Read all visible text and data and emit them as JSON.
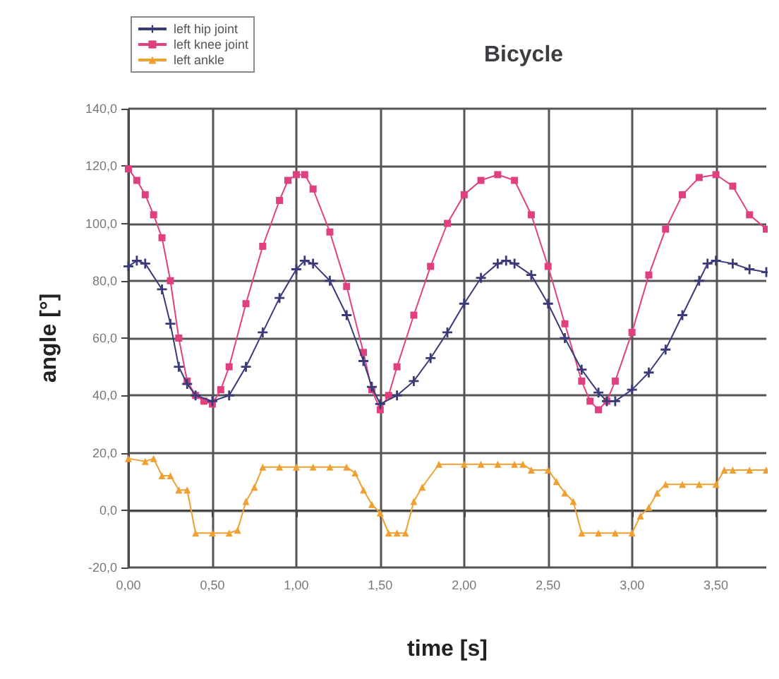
{
  "chart_data": {
    "type": "line",
    "title": "Bicycle",
    "xlabel": "time [s]",
    "ylabel": "angle [°]",
    "xlim": [
      0,
      3.8
    ],
    "xticks": [
      {
        "value": 0,
        "label": "0,00"
      },
      {
        "value": 0.5,
        "label": "0,50"
      },
      {
        "value": 1,
        "label": "1,00"
      },
      {
        "value": 1.5,
        "label": "1,50"
      },
      {
        "value": 2,
        "label": "2,00"
      },
      {
        "value": 2.5,
        "label": "2,50"
      },
      {
        "value": 3,
        "label": "3,00"
      },
      {
        "value": 3.5,
        "label": "3,50"
      }
    ],
    "ylim": [
      -20,
      140
    ],
    "yticks": [
      {
        "value": -20,
        "label": "-20,0"
      },
      {
        "value": 0,
        "label": "0,0"
      },
      {
        "value": 20,
        "label": "20,0"
      },
      {
        "value": 40,
        "label": "40,0"
      },
      {
        "value": 60,
        "label": "60,0"
      },
      {
        "value": 80,
        "label": "80,0"
      },
      {
        "value": 100,
        "label": "100,0"
      },
      {
        "value": 120,
        "label": "120,0"
      },
      {
        "value": 140,
        "label": "140,0"
      }
    ],
    "grid": true,
    "legend": "top left",
    "line_style": "solid",
    "series": [
      {
        "name": "left hip joint",
        "color": "#3a3a78",
        "marker": "cross",
        "x": [
          0,
          0.05,
          0.1,
          0.2,
          0.25,
          0.3,
          0.35,
          0.4,
          0.5,
          0.6,
          0.7,
          0.8,
          0.9,
          1.0,
          1.05,
          1.1,
          1.2,
          1.3,
          1.4,
          1.45,
          1.5,
          1.6,
          1.7,
          1.8,
          1.9,
          2.0,
          2.1,
          2.2,
          2.25,
          2.3,
          2.4,
          2.5,
          2.6,
          2.7,
          2.8,
          2.85,
          2.9,
          3.0,
          3.1,
          3.2,
          3.3,
          3.4,
          3.45,
          3.5,
          3.6,
          3.7,
          3.8
        ],
        "values": [
          85,
          87,
          86,
          77,
          65,
          50,
          44,
          40,
          38,
          40,
          50,
          62,
          74,
          84,
          87,
          86,
          80,
          68,
          52,
          43,
          37,
          40,
          45,
          53,
          62,
          72,
          81,
          86,
          87,
          86,
          82,
          72,
          60,
          49,
          41,
          38,
          38,
          42,
          48,
          56,
          68,
          80,
          86,
          87,
          86,
          84,
          83
        ]
      },
      {
        "name": "left knee joint",
        "color": "#e0407f",
        "marker": "square",
        "x": [
          0,
          0.05,
          0.1,
          0.15,
          0.2,
          0.25,
          0.3,
          0.35,
          0.4,
          0.45,
          0.5,
          0.55,
          0.6,
          0.7,
          0.8,
          0.9,
          0.95,
          1.0,
          1.05,
          1.1,
          1.2,
          1.3,
          1.4,
          1.45,
          1.5,
          1.55,
          1.6,
          1.7,
          1.8,
          1.9,
          2.0,
          2.1,
          2.2,
          2.3,
          2.4,
          2.5,
          2.6,
          2.7,
          2.75,
          2.8,
          2.85,
          2.9,
          3.0,
          3.1,
          3.2,
          3.3,
          3.4,
          3.5,
          3.6,
          3.7,
          3.8
        ],
        "values": [
          119,
          115,
          110,
          103,
          95,
          80,
          60,
          45,
          40,
          38,
          37,
          42,
          50,
          72,
          92,
          108,
          115,
          117,
          117,
          112,
          97,
          78,
          55,
          42,
          35,
          40,
          50,
          68,
          85,
          100,
          110,
          115,
          117,
          115,
          103,
          85,
          65,
          45,
          38,
          35,
          38,
          45,
          62,
          82,
          98,
          110,
          116,
          117,
          113,
          103,
          98
        ]
      },
      {
        "name": "left ankle",
        "color": "#f0a030",
        "marker": "triangle",
        "x": [
          0,
          0.1,
          0.15,
          0.2,
          0.25,
          0.3,
          0.35,
          0.4,
          0.5,
          0.6,
          0.65,
          0.7,
          0.75,
          0.8,
          0.9,
          1.0,
          1.1,
          1.2,
          1.3,
          1.35,
          1.4,
          1.45,
          1.5,
          1.55,
          1.6,
          1.65,
          1.7,
          1.75,
          1.85,
          2.0,
          2.1,
          2.2,
          2.3,
          2.35,
          2.4,
          2.5,
          2.55,
          2.6,
          2.65,
          2.7,
          2.8,
          2.9,
          3.0,
          3.05,
          3.1,
          3.15,
          3.2,
          3.3,
          3.4,
          3.5,
          3.55,
          3.6,
          3.7,
          3.8
        ],
        "values": [
          18,
          17,
          18,
          12,
          12,
          7,
          7,
          -8,
          -8,
          -8,
          -7,
          3,
          8,
          15,
          15,
          15,
          15,
          15,
          15,
          13,
          7,
          2,
          -1,
          -8,
          -8,
          -8,
          3,
          8,
          16,
          16,
          16,
          16,
          16,
          16,
          14,
          14,
          10,
          6,
          3,
          -8,
          -8,
          -8,
          -8,
          -2,
          1,
          6,
          9,
          9,
          9,
          9,
          14,
          14,
          14,
          14
        ]
      }
    ]
  }
}
